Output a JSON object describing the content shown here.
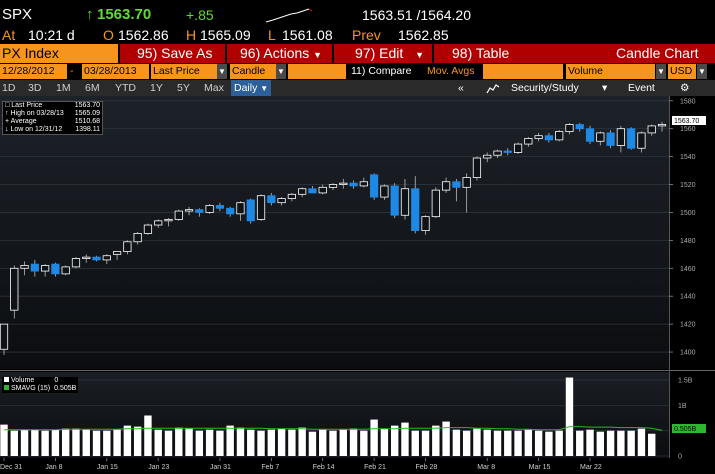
{
  "quote": {
    "ticker": "SPX",
    "up_arrow": "↑",
    "last": "1563.70",
    "change": "+.85",
    "bid_ask": "1563.51 /1564.20",
    "at_label": "At",
    "time": "10:21 d",
    "open_label": "O",
    "open": "1562.86",
    "high_label": "H",
    "high": "1565.09",
    "low_label": "L",
    "low": "1561.08",
    "prev_label": "Prev",
    "prev": "1562.85"
  },
  "menu": {
    "index": "PX Index",
    "save_as": "95) Save As",
    "actions": "96) Actions",
    "edit": "97) Edit",
    "table": "98) Table",
    "title": "Candle Chart"
  },
  "toolbar1": {
    "start_date": "12/28/2012",
    "end_date": "03/28/2013",
    "field": "Last Price",
    "chart_type": "Candle",
    "compare": "11) Compare",
    "mov_avgs": "Mov. Avgs",
    "volume": "Volume",
    "currency": "USD"
  },
  "toolbar2": {
    "periods": [
      "1D",
      "3D",
      "1M",
      "6M",
      "YTD",
      "1Y",
      "5Y",
      "Max"
    ],
    "frequency": "Daily",
    "security_study": "Security/Study",
    "event": "Event"
  },
  "legend_price": {
    "rows": [
      {
        "label": "Last Price",
        "value": "1563.70"
      },
      {
        "label": "High on 03/28/13",
        "value": "1565.09"
      },
      {
        "label": "Average",
        "value": "1510.68"
      },
      {
        "label": "Low on 12/31/12",
        "value": "1398.11"
      }
    ]
  },
  "legend_volume": {
    "rows": [
      {
        "label": "Volume",
        "value": "0"
      },
      {
        "label": "SMAVG (15)",
        "value": "0.505B"
      }
    ]
  },
  "last_price_tag": "1563.70",
  "sma_tag": "0.505B",
  "colors": {
    "accent": "#f7941d",
    "menu": "#b00000",
    "up_candle": "#ffffff",
    "down_candle": "#1e88e5",
    "sma": "#2fb52f"
  },
  "chart_data": {
    "type": "candlestick",
    "x_tick_labels": [
      "Dec 31",
      "Jan 8",
      "Jan 15",
      "Jan 23",
      "Jan 31",
      "Feb 7",
      "Feb 14",
      "Feb 21",
      "Feb 28",
      "Mar 8",
      "Mar 15",
      "Mar 22"
    ],
    "y_ticks": [
      1400,
      1420,
      1440,
      1460,
      1480,
      1500,
      1520,
      1540,
      1560,
      1580
    ],
    "ylim": [
      1390,
      1582
    ],
    "volume_ticks": [
      "1.5B",
      "1B",
      "0.5B",
      "0"
    ],
    "volume_ylim": [
      0,
      1.6
    ],
    "candles": [
      {
        "o": 1402,
        "h": 1420,
        "l": 1398,
        "c": 1420
      },
      {
        "o": 1430,
        "h": 1462,
        "l": 1424,
        "c": 1460
      },
      {
        "o": 1460,
        "h": 1465,
        "l": 1455,
        "c": 1462
      },
      {
        "o": 1463,
        "h": 1466,
        "l": 1454,
        "c": 1458
      },
      {
        "o": 1458,
        "h": 1463,
        "l": 1454,
        "c": 1462
      },
      {
        "o": 1463,
        "h": 1464,
        "l": 1454,
        "c": 1456
      },
      {
        "o": 1456,
        "h": 1462,
        "l": 1455,
        "c": 1461
      },
      {
        "o": 1461,
        "h": 1468,
        "l": 1460,
        "c": 1467
      },
      {
        "o": 1467,
        "h": 1470,
        "l": 1464,
        "c": 1468
      },
      {
        "o": 1468,
        "h": 1469,
        "l": 1465,
        "c": 1466
      },
      {
        "o": 1466,
        "h": 1470,
        "l": 1463,
        "c": 1469
      },
      {
        "o": 1470,
        "h": 1472,
        "l": 1466,
        "c": 1472
      },
      {
        "o": 1472,
        "h": 1480,
        "l": 1470,
        "c": 1479
      },
      {
        "o": 1479,
        "h": 1486,
        "l": 1477,
        "c": 1485
      },
      {
        "o": 1485,
        "h": 1492,
        "l": 1484,
        "c": 1491
      },
      {
        "o": 1491,
        "h": 1495,
        "l": 1489,
        "c": 1494
      },
      {
        "o": 1494,
        "h": 1496,
        "l": 1490,
        "c": 1495
      },
      {
        "o": 1495,
        "h": 1502,
        "l": 1494,
        "c": 1501
      },
      {
        "o": 1501,
        "h": 1504,
        "l": 1498,
        "c": 1502
      },
      {
        "o": 1502,
        "h": 1503,
        "l": 1497,
        "c": 1500
      },
      {
        "o": 1500,
        "h": 1506,
        "l": 1499,
        "c": 1505
      },
      {
        "o": 1505,
        "h": 1507,
        "l": 1501,
        "c": 1503
      },
      {
        "o": 1503,
        "h": 1504,
        "l": 1497,
        "c": 1499
      },
      {
        "o": 1499,
        "h": 1508,
        "l": 1494,
        "c": 1507
      },
      {
        "o": 1509,
        "h": 1510,
        "l": 1492,
        "c": 1494
      },
      {
        "o": 1495,
        "h": 1513,
        "l": 1494,
        "c": 1512
      },
      {
        "o": 1512,
        "h": 1514,
        "l": 1505,
        "c": 1507
      },
      {
        "o": 1507,
        "h": 1511,
        "l": 1505,
        "c": 1510
      },
      {
        "o": 1510,
        "h": 1514,
        "l": 1508,
        "c": 1513
      },
      {
        "o": 1513,
        "h": 1518,
        "l": 1511,
        "c": 1517
      },
      {
        "o": 1517,
        "h": 1519,
        "l": 1514,
        "c": 1514
      },
      {
        "o": 1514,
        "h": 1520,
        "l": 1513,
        "c": 1518
      },
      {
        "o": 1518,
        "h": 1521,
        "l": 1516,
        "c": 1520
      },
      {
        "o": 1520,
        "h": 1524,
        "l": 1517,
        "c": 1521
      },
      {
        "o": 1521,
        "h": 1523,
        "l": 1517,
        "c": 1519
      },
      {
        "o": 1519,
        "h": 1525,
        "l": 1518,
        "c": 1522
      },
      {
        "o": 1527,
        "h": 1528,
        "l": 1509,
        "c": 1511
      },
      {
        "o": 1511,
        "h": 1520,
        "l": 1509,
        "c": 1519
      },
      {
        "o": 1519,
        "h": 1521,
        "l": 1496,
        "c": 1498
      },
      {
        "o": 1498,
        "h": 1524,
        "l": 1495,
        "c": 1517
      },
      {
        "o": 1517,
        "h": 1526,
        "l": 1485,
        "c": 1487
      },
      {
        "o": 1487,
        "h": 1498,
        "l": 1484,
        "c": 1497
      },
      {
        "o": 1497,
        "h": 1518,
        "l": 1496,
        "c": 1516
      },
      {
        "o": 1516,
        "h": 1525,
        "l": 1514,
        "c": 1522
      },
      {
        "o": 1522,
        "h": 1524,
        "l": 1508,
        "c": 1518
      },
      {
        "o": 1518,
        "h": 1528,
        "l": 1500,
        "c": 1525
      },
      {
        "o": 1525,
        "h": 1540,
        "l": 1523,
        "c": 1539
      },
      {
        "o": 1539,
        "h": 1543,
        "l": 1536,
        "c": 1541
      },
      {
        "o": 1541,
        "h": 1545,
        "l": 1539,
        "c": 1544
      },
      {
        "o": 1544,
        "h": 1546,
        "l": 1541,
        "c": 1543
      },
      {
        "o": 1543,
        "h": 1550,
        "l": 1542,
        "c": 1549
      },
      {
        "o": 1549,
        "h": 1554,
        "l": 1547,
        "c": 1553
      },
      {
        "o": 1553,
        "h": 1557,
        "l": 1551,
        "c": 1555
      },
      {
        "o": 1555,
        "h": 1557,
        "l": 1550,
        "c": 1552
      },
      {
        "o": 1552,
        "h": 1559,
        "l": 1551,
        "c": 1558
      },
      {
        "o": 1558,
        "h": 1564,
        "l": 1556,
        "c": 1563
      },
      {
        "o": 1563,
        "h": 1564,
        "l": 1558,
        "c": 1560
      },
      {
        "o": 1560,
        "h": 1562,
        "l": 1549,
        "c": 1551
      },
      {
        "o": 1551,
        "h": 1558,
        "l": 1548,
        "c": 1557
      },
      {
        "o": 1557,
        "h": 1559,
        "l": 1546,
        "c": 1548
      },
      {
        "o": 1548,
        "h": 1562,
        "l": 1543,
        "c": 1560
      },
      {
        "o": 1560,
        "h": 1561,
        "l": 1545,
        "c": 1546
      },
      {
        "o": 1546,
        "h": 1558,
        "l": 1543,
        "c": 1557
      },
      {
        "o": 1557,
        "h": 1563,
        "l": 1555,
        "c": 1562
      },
      {
        "o": 1562,
        "h": 1565,
        "l": 1558,
        "c": 1563
      }
    ],
    "volume": [
      0.62,
      0.5,
      0.52,
      0.52,
      0.5,
      0.52,
      0.54,
      0.54,
      0.52,
      0.5,
      0.5,
      0.52,
      0.6,
      0.58,
      0.8,
      0.52,
      0.5,
      0.56,
      0.54,
      0.5,
      0.52,
      0.5,
      0.6,
      0.56,
      0.52,
      0.5,
      0.52,
      0.54,
      0.52,
      0.56,
      0.48,
      0.52,
      0.5,
      0.52,
      0.54,
      0.5,
      0.72,
      0.54,
      0.6,
      0.66,
      0.5,
      0.5,
      0.6,
      0.68,
      0.52,
      0.5,
      0.54,
      0.52,
      0.5,
      0.5,
      0.5,
      0.52,
      0.5,
      0.48,
      0.5,
      1.55,
      0.5,
      0.52,
      0.48,
      0.5,
      0.5,
      0.5,
      0.54,
      0.44,
      0.0
    ],
    "sma": [
      0.52,
      0.52,
      0.52,
      0.52,
      0.52,
      0.52,
      0.53,
      0.53,
      0.53,
      0.53,
      0.53,
      0.53,
      0.54,
      0.54,
      0.55,
      0.55,
      0.55,
      0.55,
      0.55,
      0.55,
      0.55,
      0.55,
      0.55,
      0.55,
      0.55,
      0.55,
      0.54,
      0.54,
      0.54,
      0.54,
      0.53,
      0.53,
      0.53,
      0.53,
      0.53,
      0.53,
      0.54,
      0.54,
      0.54,
      0.55,
      0.55,
      0.55,
      0.55,
      0.56,
      0.56,
      0.56,
      0.55,
      0.55,
      0.54,
      0.54,
      0.53,
      0.53,
      0.52,
      0.52,
      0.52,
      0.58,
      0.58,
      0.57,
      0.57,
      0.57,
      0.56,
      0.56,
      0.56,
      0.55,
      0.505
    ]
  }
}
